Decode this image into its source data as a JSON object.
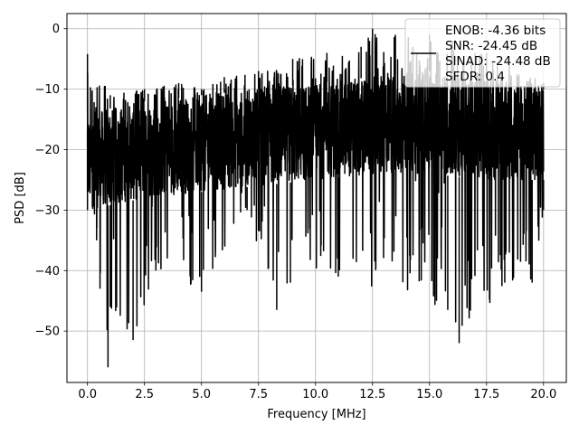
{
  "chart_data": {
    "type": "line",
    "title": "",
    "xlabel": "Frequency [MHz]",
    "ylabel": "PSD [dB]",
    "xlim": [
      -0.9,
      21.0
    ],
    "ylim": [
      -58.5,
      2.5
    ],
    "xticks": [
      0.0,
      2.5,
      5.0,
      7.5,
      10.0,
      12.5,
      15.0,
      17.5,
      20.0
    ],
    "xtick_labels": [
      "0.0",
      "2.5",
      "5.0",
      "7.5",
      "10.0",
      "12.5",
      "15.0",
      "17.5",
      "20.0"
    ],
    "yticks": [
      0,
      -10,
      -20,
      -30,
      -40,
      -50
    ],
    "ytick_labels": [
      "0",
      "−10",
      "−20",
      "−30",
      "−40",
      "−50"
    ],
    "grid": true,
    "legend": {
      "placement": "top-right",
      "entries": [
        "ENOB: -4.36 bits",
        "SNR: -24.45 dB",
        "SINAD: -24.48 dB",
        "SFDR: 0.4"
      ]
    },
    "series": [
      {
        "color": "#000000",
        "upper_envelope": [
          [
            0.0,
            -4.2
          ],
          [
            1.0,
            -11
          ],
          [
            2.5,
            -10
          ],
          [
            4.0,
            -9
          ],
          [
            5.0,
            -10
          ],
          [
            6.0,
            -8
          ],
          [
            7.5,
            -7
          ],
          [
            9.0,
            -5
          ],
          [
            10.5,
            -4
          ],
          [
            12.0,
            -3
          ],
          [
            12.5,
            0
          ],
          [
            13.5,
            -1
          ],
          [
            15.0,
            -1
          ],
          [
            16.0,
            -2
          ],
          [
            17.0,
            -4
          ],
          [
            17.5,
            -4
          ],
          [
            18.5,
            -6
          ],
          [
            20.0,
            -9
          ]
        ],
        "lower_envelope": [
          [
            0.0,
            -17
          ],
          [
            0.4,
            -35
          ],
          [
            0.55,
            -43
          ],
          [
            0.9,
            -56
          ],
          [
            1.0,
            -46
          ],
          [
            2.0,
            -51.5
          ],
          [
            3.0,
            -40
          ],
          [
            5.0,
            -43.5
          ],
          [
            7.0,
            -30
          ],
          [
            8.3,
            -46.5
          ],
          [
            8.9,
            -42
          ],
          [
            11.0,
            -41
          ],
          [
            15.8,
            -46.5
          ],
          [
            16.3,
            -52
          ],
          [
            18.3,
            -42
          ],
          [
            19.5,
            -42
          ],
          [
            20.0,
            -30
          ]
        ],
        "typical_band": [
          [
            0.0,
            -14,
            -30
          ],
          [
            2.5,
            -12,
            -28
          ],
          [
            5.0,
            -11,
            -27
          ],
          [
            7.5,
            -10,
            -26
          ],
          [
            10.0,
            -9,
            -25
          ],
          [
            12.5,
            -8,
            -24
          ],
          [
            15.0,
            -7,
            -24
          ],
          [
            17.5,
            -8,
            -25
          ],
          [
            20.0,
            -10,
            -25
          ]
        ]
      }
    ]
  }
}
